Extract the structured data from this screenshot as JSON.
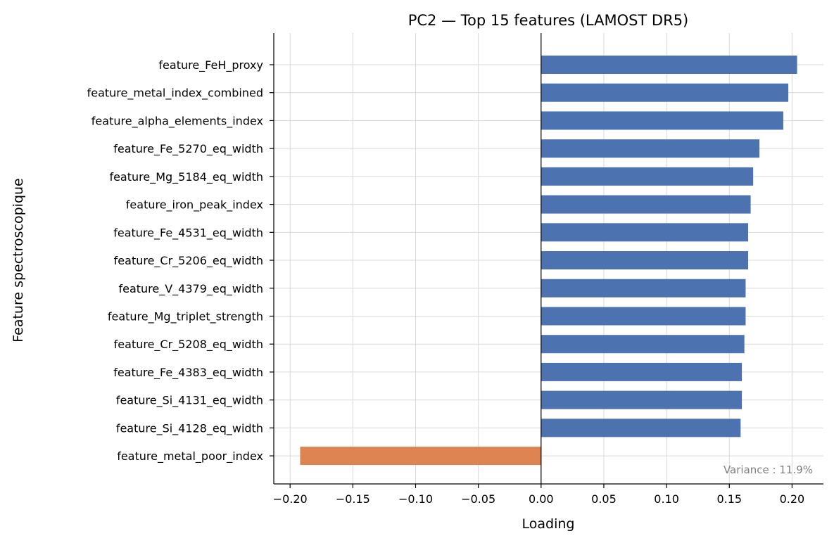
{
  "chart_data": {
    "type": "bar",
    "orientation": "horizontal",
    "title": "PC2 — Top 15 features (LAMOST DR5)",
    "xlabel": "Loading",
    "ylabel": "Feature spectroscopique",
    "xlim": [
      -0.213,
      0.225
    ],
    "xticks": [
      -0.2,
      -0.15,
      -0.1,
      -0.05,
      0.0,
      0.05,
      0.1,
      0.15,
      0.2
    ],
    "xtick_labels": [
      "−0.20",
      "−0.15",
      "−0.10",
      "−0.05",
      "0.00",
      "0.05",
      "0.10",
      "0.15",
      "0.20"
    ],
    "grid": true,
    "categories": [
      "feature_FeH_proxy",
      "feature_metal_index_combined",
      "feature_alpha_elements_index",
      "feature_Fe_5270_eq_width",
      "feature_Mg_5184_eq_width",
      "feature_iron_peak_index",
      "feature_Fe_4531_eq_width",
      "feature_Cr_5206_eq_width",
      "feature_V_4379_eq_width",
      "feature_Mg_triplet_strength",
      "feature_Cr_5208_eq_width",
      "feature_Fe_4383_eq_width",
      "feature_Si_4131_eq_width",
      "feature_Si_4128_eq_width",
      "feature_metal_poor_index"
    ],
    "values": [
      0.204,
      0.197,
      0.193,
      0.174,
      0.169,
      0.167,
      0.165,
      0.165,
      0.163,
      0.163,
      0.162,
      0.16,
      0.16,
      0.159,
      -0.192
    ],
    "colors": {
      "positive": "#4c72b0",
      "negative": "#dd8452"
    },
    "annotation": "Variance : 11.9%"
  }
}
